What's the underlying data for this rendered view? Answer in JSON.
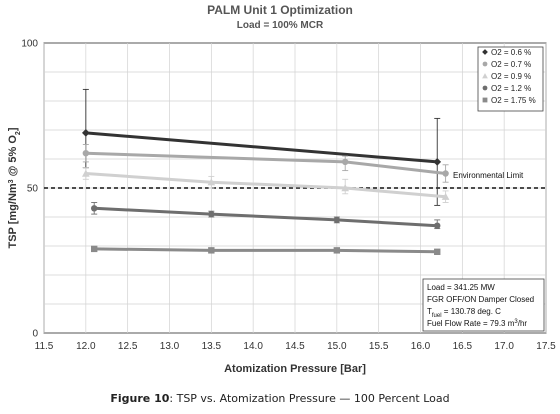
{
  "chart_data": {
    "type": "line",
    "title": "PALM Unit 1 Optimization",
    "subtitle": "Load = 100% MCR",
    "xlabel": "Atomization Pressure [Bar]",
    "ylabel_parts": [
      "TSP [mg/Nm",
      "3",
      " @ 5% O",
      "2",
      "]"
    ],
    "xlim": [
      11.5,
      17.5
    ],
    "ylim": [
      0,
      100
    ],
    "x_ticks": [
      "11.5",
      "12.0",
      "12.5",
      "13.0",
      "13.5",
      "14.0",
      "14.5",
      "15.0",
      "15.5",
      "16.0",
      "16.5",
      "17.0",
      "17.5"
    ],
    "y_ticks": [
      "0",
      "50",
      "100"
    ],
    "grid": true,
    "legend_position": "top-right",
    "series": [
      {
        "name": "O2 = 0.6 %",
        "color": "#333333",
        "marker": "diamond",
        "x": [
          12.0,
          16.2
        ],
        "y": [
          69,
          59
        ],
        "err_low": [
          57,
          44
        ],
        "err_high": [
          84,
          74
        ]
      },
      {
        "name": "O2 = 0.7 %",
        "color": "#a8a8a8",
        "marker": "circle",
        "x": [
          12.0,
          15.1,
          16.3
        ],
        "y": [
          62,
          59,
          55
        ],
        "err_low": [
          59,
          56,
          52
        ],
        "err_high": [
          65,
          61,
          58
        ]
      },
      {
        "name": "O2 = 0.9 %",
        "color": "#d0d0d0",
        "marker": "triangle",
        "x": [
          12.0,
          13.5,
          15.1,
          16.3
        ],
        "y": [
          55,
          52,
          50,
          47
        ],
        "err_low": [
          53,
          50,
          48,
          45
        ],
        "err_high": [
          57,
          54,
          53,
          49
        ]
      },
      {
        "name": "O2 = 1.2 %",
        "color": "#6e6e6e",
        "marker": "circle",
        "x": [
          12.1,
          13.5,
          15.0,
          16.2
        ],
        "y": [
          43,
          41,
          39,
          37
        ],
        "err_low": [
          41,
          40,
          38,
          36
        ],
        "err_high": [
          45,
          42,
          40,
          39
        ]
      },
      {
        "name": "O2 = 1.75 %",
        "color": "#8a8a8a",
        "marker": "square",
        "x": [
          12.1,
          13.5,
          15.0,
          16.2
        ],
        "y": [
          29,
          28.5,
          28.5,
          28
        ],
        "err_low": [
          29,
          28.5,
          28.5,
          28
        ],
        "err_high": [
          29,
          28.5,
          28.5,
          28
        ]
      }
    ],
    "reference_line": {
      "label": "Environmental Limit",
      "y": 50
    },
    "info_box": [
      "Load = 341.25 MW",
      "FGR OFF/ON Damper Closed",
      "T",
      "fuel",
      " = 130.78 deg. C",
      "Fuel Flow Rate = 79.3 m",
      "3",
      "/hr"
    ]
  },
  "caption": {
    "label": "Figure 10",
    "text": ":  TSP vs. Atomization Pressure — 100 Percent Load"
  }
}
